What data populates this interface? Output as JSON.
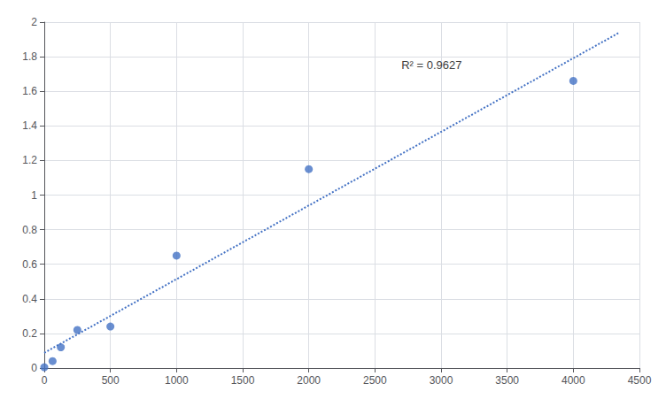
{
  "chart_data": {
    "type": "scatter",
    "series": [
      {
        "type": "scatter",
        "color": "#4472C4",
        "x": [
          0,
          62.5,
          125,
          250,
          500,
          1000,
          2000,
          4000
        ],
        "values": [
          0.005,
          0.04,
          0.12,
          0.22,
          0.24,
          0.65,
          1.15,
          1.66
        ]
      },
      {
        "type": "line",
        "line_style": "dotted",
        "color": "#4472C4",
        "x": [
          0,
          4350
        ],
        "values": [
          0.0882,
          1.9403
        ]
      }
    ],
    "annotations": [
      {
        "text": "R² = 0.9627",
        "x": 2700,
        "y": 1.72
      }
    ],
    "xlim": [
      0,
      4500
    ],
    "ylim": [
      0,
      2.0
    ],
    "xticks": [
      0,
      500,
      1000,
      1500,
      2000,
      2500,
      3000,
      3500,
      4000,
      4500
    ],
    "yticks": [
      0,
      0.2,
      0.4,
      0.6,
      0.8,
      1,
      1.2,
      1.4,
      1.6,
      1.8,
      2
    ],
    "grid": true
  }
}
